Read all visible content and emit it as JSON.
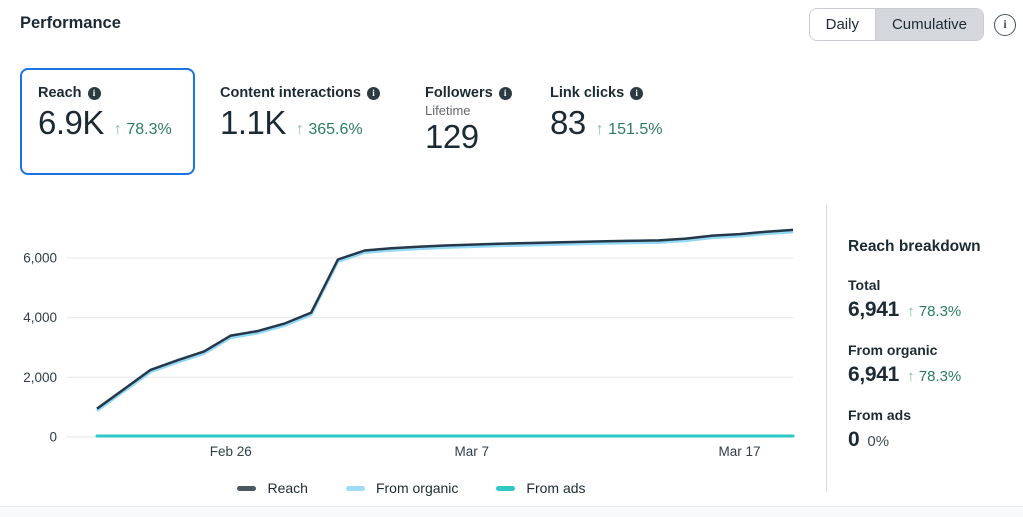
{
  "header": {
    "title": "Performance",
    "toggle": {
      "daily": "Daily",
      "cumulative": "Cumulative",
      "selected": "Cumulative"
    },
    "info_icon": "info-circle-outline"
  },
  "cards": [
    {
      "label": "Reach",
      "value": "6.9K",
      "delta_arrow": "↑",
      "delta": "78.3%",
      "selected": true
    },
    {
      "label": "Content interactions",
      "value": "1.1K",
      "delta_arrow": "↑",
      "delta": "365.6%"
    },
    {
      "label": "Followers",
      "sublabel": "Lifetime",
      "value": "129"
    },
    {
      "label": "Link clicks",
      "value": "83",
      "delta_arrow": "↑",
      "delta": "151.5%"
    }
  ],
  "chart_data": {
    "type": "line",
    "x": [
      "Feb 21",
      "Feb 22",
      "Feb 23",
      "Feb 24",
      "Feb 25",
      "Feb 26",
      "Feb 27",
      "Feb 28",
      "Mar 1",
      "Mar 2",
      "Mar 3",
      "Mar 4",
      "Mar 5",
      "Mar 6",
      "Mar 7",
      "Mar 8",
      "Mar 9",
      "Mar 10",
      "Mar 11",
      "Mar 12",
      "Mar 13",
      "Mar 14",
      "Mar 15",
      "Mar 16",
      "Mar 17",
      "Mar 18",
      "Mar 19"
    ],
    "series": [
      {
        "name": "Reach",
        "color": "#24384a",
        "values": [
          950,
          1600,
          2250,
          2570,
          2870,
          3400,
          3550,
          3800,
          4170,
          5950,
          6250,
          6330,
          6380,
          6420,
          6450,
          6480,
          6500,
          6520,
          6540,
          6560,
          6575,
          6590,
          6650,
          6750,
          6800,
          6880,
          6941
        ]
      },
      {
        "name": "From organic",
        "color": "#93d8f5",
        "values": [
          950,
          1600,
          2250,
          2570,
          2870,
          3400,
          3550,
          3800,
          4170,
          5950,
          6250,
          6330,
          6380,
          6420,
          6450,
          6480,
          6500,
          6520,
          6540,
          6560,
          6575,
          6590,
          6650,
          6750,
          6800,
          6880,
          6941
        ]
      },
      {
        "name": "From ads",
        "color": "#2bc9c6",
        "values": [
          0,
          0,
          0,
          0,
          0,
          0,
          0,
          0,
          0,
          0,
          0,
          0,
          0,
          0,
          0,
          0,
          0,
          0,
          0,
          0,
          0,
          0,
          0,
          0,
          0,
          0,
          0
        ]
      }
    ],
    "yticks": [
      0,
      2000,
      4000,
      6000
    ],
    "ylim": [
      0,
      7200
    ],
    "xtick_labels": [
      "Feb 26",
      "Mar 7",
      "Mar 17"
    ],
    "xtick_positions": [
      5,
      14,
      24
    ],
    "grid": "horizontal",
    "legend_position": "bottom",
    "title": ""
  },
  "legend": [
    {
      "label": "Reach",
      "color": "#4a5961"
    },
    {
      "label": "From organic",
      "color": "#9edcf7"
    },
    {
      "label": "From ads",
      "color": "#2fc8c4"
    }
  ],
  "breakdown": {
    "title": "Reach breakdown",
    "rows": [
      {
        "label": "Total",
        "value": "6,941",
        "delta_arrow": "↑",
        "delta": "78.3%",
        "positive": true
      },
      {
        "label": "From organic",
        "value": "6,941",
        "delta_arrow": "↑",
        "delta": "78.3%",
        "positive": true
      },
      {
        "label": "From ads",
        "value": "0",
        "delta": "0%",
        "positive": false
      }
    ]
  },
  "icons": {
    "card_info": "info-filled-circle",
    "header_info": "info-outline-circle"
  }
}
